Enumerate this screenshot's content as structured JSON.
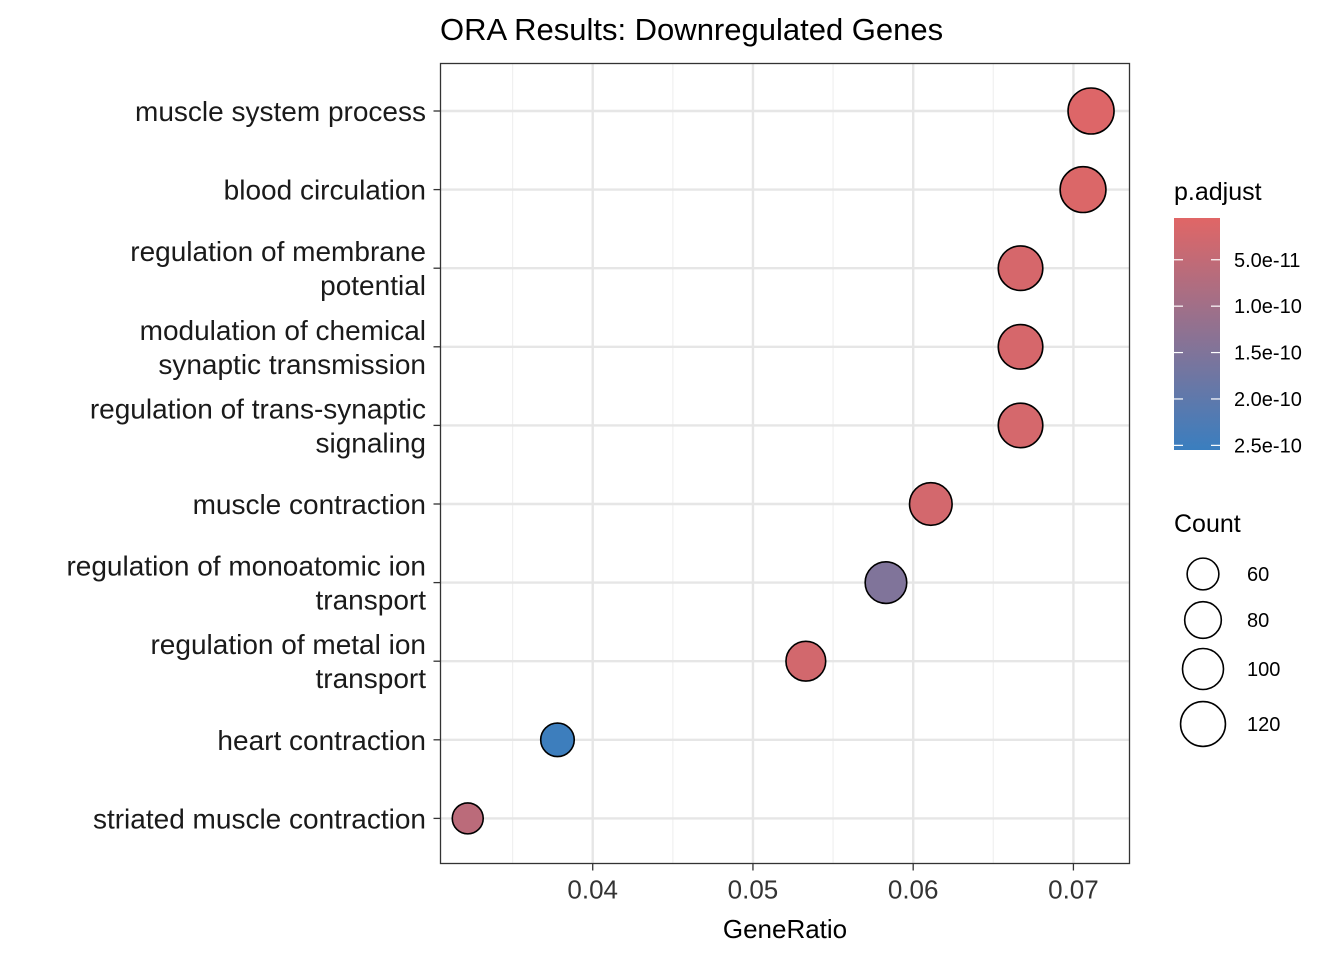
{
  "chart_data": {
    "type": "scatter",
    "title": "ORA Results: Downregulated Genes",
    "xlabel": "GeneRatio",
    "ylabel": "",
    "xlim": [
      0.0305,
      0.0735
    ],
    "x_ticks": [
      0.04,
      0.05,
      0.06,
      0.07
    ],
    "x_tick_labels": [
      "0.04",
      "0.05",
      "0.06",
      "0.07"
    ],
    "grid": true,
    "categories": [
      [
        "muscle system process"
      ],
      [
        "blood circulation"
      ],
      [
        "regulation of membrane",
        "potential"
      ],
      [
        "modulation of chemical",
        "synaptic transmission"
      ],
      [
        "regulation of trans-synaptic",
        "signaling"
      ],
      [
        "muscle contraction"
      ],
      [
        "regulation of monoatomic ion",
        "transport"
      ],
      [
        "regulation of metal ion",
        "transport"
      ],
      [
        "heart contraction"
      ],
      [
        "striated muscle contraction"
      ]
    ],
    "points": [
      {
        "x": 0.0711,
        "count": 126,
        "p_adjust": 1e-11
      },
      {
        "x": 0.0706,
        "count": 125,
        "p_adjust": 1.2e-11
      },
      {
        "x": 0.0667,
        "count": 118,
        "p_adjust": 2e-11
      },
      {
        "x": 0.0667,
        "count": 118,
        "p_adjust": 2e-11
      },
      {
        "x": 0.0667,
        "count": 118,
        "p_adjust": 2.2e-11
      },
      {
        "x": 0.0611,
        "count": 108,
        "p_adjust": 2.5e-11
      },
      {
        "x": 0.0583,
        "count": 103,
        "p_adjust": 1.5e-10
      },
      {
        "x": 0.0533,
        "count": 94,
        "p_adjust": 2.6e-11
      },
      {
        "x": 0.0378,
        "count": 67,
        "p_adjust": 2.5e-10
      },
      {
        "x": 0.0322,
        "count": 57,
        "p_adjust": 6e-11
      }
    ],
    "color_legend": {
      "title": "p.adjust",
      "min": 5e-12,
      "max": 2.55e-10,
      "low_color": "#E06666",
      "high_color": "#3A7EBF",
      "ticks": [
        5e-11,
        1e-10,
        1.5e-10,
        2e-10,
        2.5e-10
      ],
      "tick_labels": [
        "5.0e-11",
        "1.0e-10",
        "1.5e-10",
        "2.0e-10",
        "2.5e-10"
      ]
    },
    "size_legend": {
      "title": "Count",
      "values": [
        60,
        80,
        100,
        120
      ],
      "labels": [
        "60",
        "80",
        "100",
        "120"
      ]
    }
  }
}
